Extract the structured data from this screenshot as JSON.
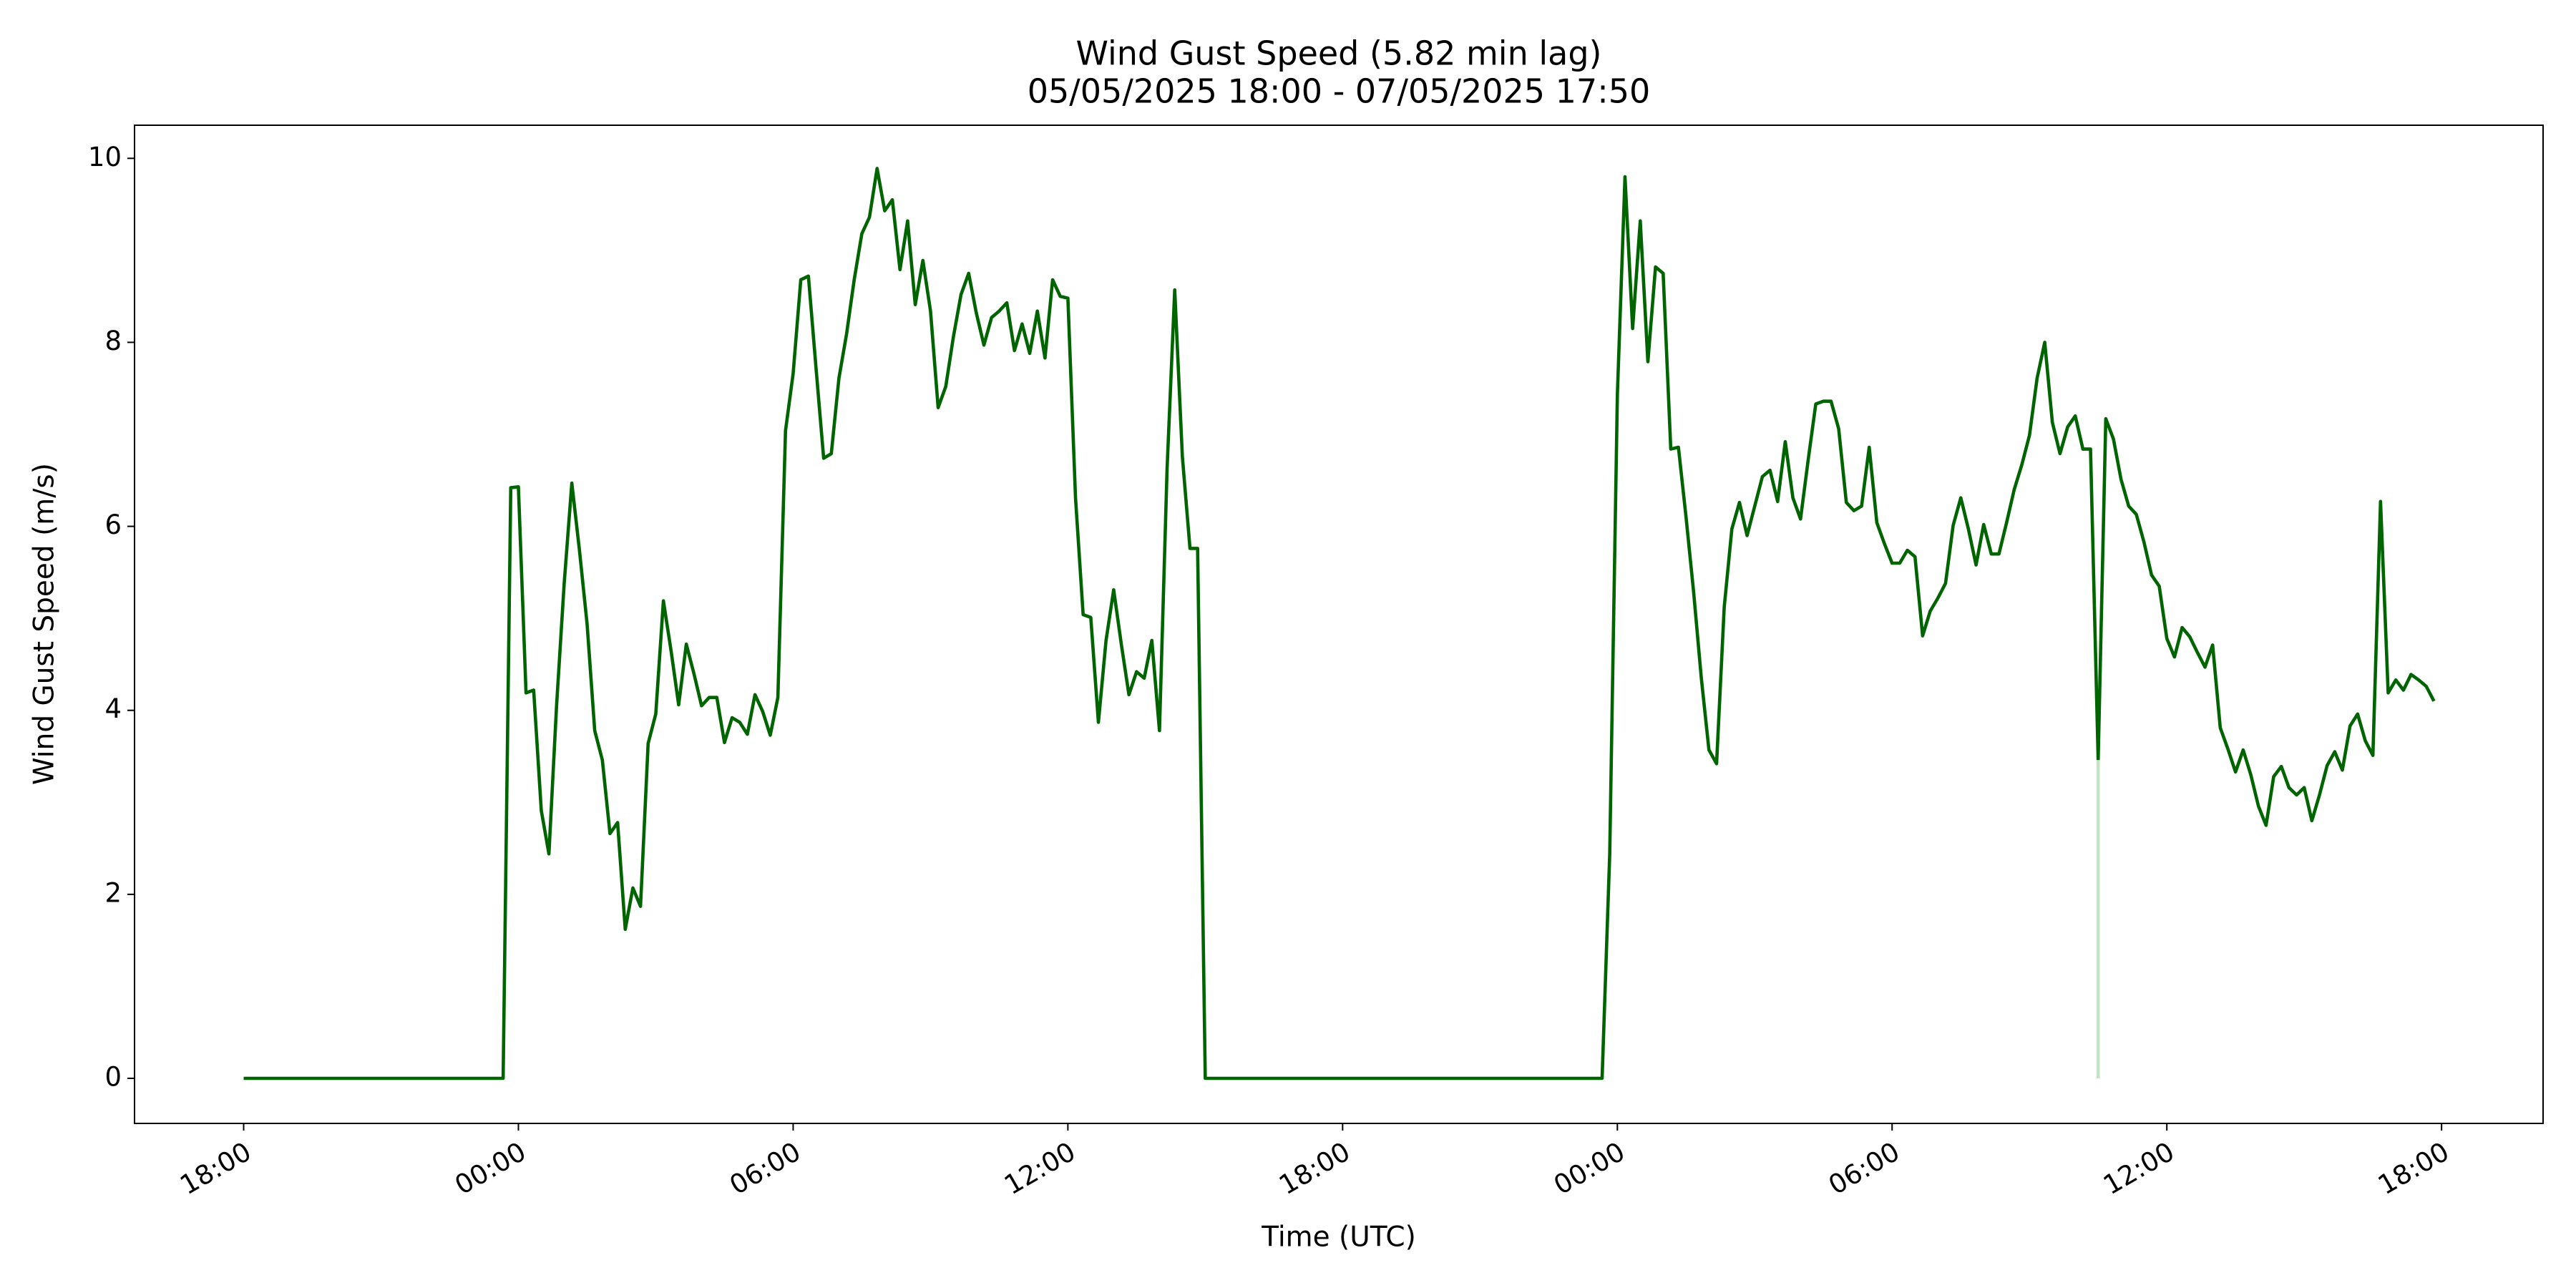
{
  "chart_data": {
    "type": "line",
    "title": "Wind Gust Speed (5.82 min lag)",
    "subtitle": "05/05/2025 18:00 - 07/05/2025 17:50",
    "x_label": "Time (UTC)",
    "y_label": "Wind Gust Speed (m/s)",
    "xlim": [
      -143,
      3013
    ],
    "ylim": [
      -0.49,
      10.36
    ],
    "xticks": [
      {
        "value": 0,
        "label": "18:00"
      },
      {
        "value": 360,
        "label": "00:00"
      },
      {
        "value": 720,
        "label": "06:00"
      },
      {
        "value": 1080,
        "label": "12:00"
      },
      {
        "value": 1440,
        "label": "18:00"
      },
      {
        "value": 1800,
        "label": "00:00"
      },
      {
        "value": 2160,
        "label": "06:00"
      },
      {
        "value": 2520,
        "label": "12:00"
      },
      {
        "value": 2880,
        "label": "18:00"
      }
    ],
    "yticks": [
      0,
      2,
      4,
      6,
      8,
      10
    ],
    "grid": false,
    "series": [
      {
        "color": "#006400",
        "x": [
          0,
          340,
          350,
          360,
          370,
          380,
          390,
          400,
          410,
          420,
          430,
          440,
          450,
          460,
          470,
          480,
          490,
          500,
          510,
          520,
          530,
          540,
          550,
          560,
          570,
          580,
          590,
          600,
          610,
          620,
          630,
          640,
          650,
          660,
          670,
          680,
          690,
          700,
          710,
          720,
          730,
          740,
          750,
          760,
          770,
          780,
          790,
          800,
          810,
          820,
          830,
          840,
          850,
          860,
          870,
          880,
          890,
          900,
          910,
          920,
          930,
          940,
          950,
          960,
          970,
          980,
          990,
          1000,
          1010,
          1020,
          1030,
          1040,
          1050,
          1060,
          1070,
          1080,
          1090,
          1100,
          1110,
          1120,
          1130,
          1140,
          1150,
          1160,
          1170,
          1180,
          1190,
          1200,
          1210,
          1220,
          1230,
          1240,
          1250,
          1260,
          1780,
          1790,
          1800,
          1810,
          1820,
          1830,
          1840,
          1850,
          1860,
          1870,
          1880,
          1890,
          1900,
          1910,
          1920,
          1930,
          1940,
          1950,
          1960,
          1970,
          1980,
          1990,
          2000,
          2010,
          2020,
          2030,
          2040,
          2050,
          2060,
          2070,
          2080,
          2090,
          2100,
          2110,
          2120,
          2130,
          2140,
          2150,
          2160,
          2170,
          2180,
          2190,
          2200,
          2210,
          2220,
          2230,
          2240,
          2250,
          2260,
          2270,
          2280,
          2290,
          2300,
          2310,
          2320,
          2330,
          2340,
          2350,
          2360,
          2370,
          2380,
          2390,
          2400,
          2410,
          2420,
          2430,
          2440,
          2450,
          2460,
          2470,
          2480,
          2490,
          2500,
          2510,
          2520,
          2530,
          2540,
          2550,
          2560,
          2570,
          2580,
          2590,
          2600,
          2610,
          2620,
          2630,
          2640,
          2650,
          2660,
          2670,
          2680,
          2690,
          2700,
          2710,
          2720,
          2730,
          2740,
          2750,
          2760,
          2770,
          2780,
          2790,
          2800,
          2810,
          2820,
          2830,
          2840,
          2850,
          2860,
          2870
        ],
        "values": [
          0,
          0,
          6.42,
          6.43,
          4.19,
          4.22,
          2.91,
          2.44,
          4.05,
          5.38,
          6.47,
          5.74,
          4.94,
          3.78,
          3.46,
          2.66,
          2.78,
          1.62,
          2.07,
          1.87,
          3.64,
          3.96,
          5.19,
          4.65,
          4.06,
          4.72,
          4.4,
          4.05,
          4.14,
          4.14,
          3.65,
          3.92,
          3.87,
          3.74,
          4.17,
          3.99,
          3.73,
          4.14,
          7.04,
          7.66,
          8.68,
          8.72,
          7.72,
          6.74,
          6.79,
          7.61,
          8.09,
          8.68,
          9.18,
          9.36,
          9.89,
          9.43,
          9.55,
          8.79,
          9.32,
          8.41,
          8.89,
          8.34,
          7.29,
          7.52,
          8.06,
          8.52,
          8.75,
          8.32,
          7.97,
          8.27,
          8.34,
          8.43,
          7.91,
          8.2,
          7.88,
          8.34,
          7.83,
          8.68,
          8.5,
          8.48,
          6.31,
          5.04,
          5.01,
          3.87,
          4.76,
          5.31,
          4.72,
          4.17,
          4.42,
          4.35,
          4.76,
          3.78,
          6.63,
          8.57,
          6.76,
          5.76,
          5.76,
          0,
          0,
          2.44,
          7.43,
          9.8,
          8.15,
          9.32,
          7.79,
          8.82,
          8.75,
          6.84,
          6.86,
          6.1,
          5.28,
          4.35,
          3.57,
          3.42,
          5.12,
          5.97,
          6.26,
          5.9,
          6.22,
          6.54,
          6.61,
          6.27,
          6.92,
          6.31,
          6.08,
          6.72,
          7.33,
          7.36,
          7.36,
          7.06,
          6.26,
          6.17,
          6.22,
          6.86,
          6.04,
          5.81,
          5.6,
          5.6,
          5.74,
          5.67,
          4.81,
          5.08,
          5.22,
          5.38,
          6.01,
          6.31,
          5.97,
          5.58,
          6.02,
          5.7,
          5.7,
          6.04,
          6.4,
          6.67,
          6.99,
          7.61,
          8.0,
          7.13,
          6.79,
          7.08,
          7.2,
          6.84,
          6.84,
          3.46,
          7.17,
          6.95,
          6.51,
          6.22,
          6.13,
          5.83,
          5.47,
          5.35,
          4.78,
          4.58,
          4.9,
          4.8,
          4.63,
          4.47,
          4.71,
          3.81,
          3.58,
          3.33,
          3.57,
          3.3,
          2.96,
          2.75,
          3.28,
          3.39,
          3.16,
          3.08,
          3.16,
          2.8,
          3.08,
          3.4,
          3.55,
          3.35,
          3.83,
          3.96,
          3.67,
          3.51,
          6.27,
          4.19,
          4.33,
          4.22,
          4.39,
          4.33,
          4.26,
          4.1
        ]
      },
      {
        "color": "#c6e2c6",
        "x": [
          2430,
          2430
        ],
        "values": [
          3.46,
          0
        ]
      }
    ]
  }
}
